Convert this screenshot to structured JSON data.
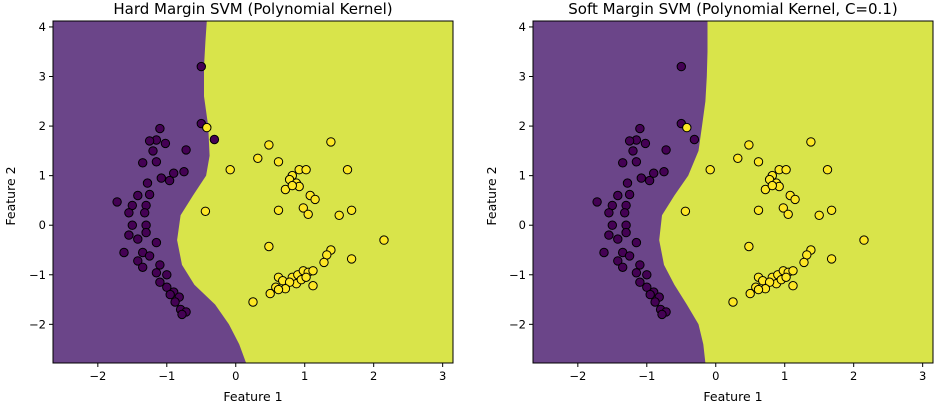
{
  "colors": {
    "class_0_region": "#6b4589",
    "class_1_region": "#d9e44a",
    "class_0_point": "#440154",
    "class_1_point": "#fde725",
    "point_edge": "#000000"
  },
  "chart_data": [
    {
      "type": "scatter",
      "title": "Hard Margin SVM (Polynomial Kernel)",
      "xlabel": "Feature 1",
      "ylabel": "Feature 2",
      "xlim": [
        -2.65,
        3.15
      ],
      "ylim": [
        -2.78,
        4.12
      ],
      "xticks": [
        "−2",
        "−1",
        "0",
        "1",
        "2",
        "3"
      ],
      "xtick_values": [
        -2,
        -1,
        0,
        1,
        2,
        3
      ],
      "yticks": [
        "−2",
        "−1",
        "0",
        "1",
        "2",
        "3",
        "4"
      ],
      "ytick_values": [
        -2,
        -1,
        0,
        1,
        2,
        3,
        4
      ],
      "grid": false,
      "decision_boundary": [
        [
          0.15,
          -2.78
        ],
        [
          0.05,
          -2.4
        ],
        [
          -0.1,
          -2.0
        ],
        [
          -0.3,
          -1.6
        ],
        [
          -0.6,
          -1.2
        ],
        [
          -0.78,
          -0.8
        ],
        [
          -0.85,
          -0.3
        ],
        [
          -0.8,
          0.2
        ],
        [
          -0.62,
          0.6
        ],
        [
          -0.43,
          1.0
        ],
        [
          -0.38,
          1.4
        ],
        [
          -0.4,
          2.0
        ],
        [
          -0.46,
          2.6
        ],
        [
          -0.46,
          3.2
        ],
        [
          -0.44,
          3.7
        ],
        [
          -0.42,
          4.12
        ]
      ],
      "points_class_0": [
        [
          -0.5,
          3.2
        ],
        [
          -0.5,
          2.05
        ],
        [
          -0.31,
          1.73
        ],
        [
          -1.1,
          1.95
        ],
        [
          -1.15,
          1.72
        ],
        [
          -1.25,
          1.7
        ],
        [
          -1.02,
          1.65
        ],
        [
          -1.2,
          1.5
        ],
        [
          -1.35,
          1.26
        ],
        [
          -1.15,
          1.28
        ],
        [
          -0.72,
          1.52
        ],
        [
          -0.75,
          1.08
        ],
        [
          -0.9,
          1.05
        ],
        [
          -1.08,
          0.95
        ],
        [
          -0.96,
          0.9
        ],
        [
          -1.28,
          0.85
        ],
        [
          -1.25,
          0.62
        ],
        [
          -1.42,
          0.6
        ],
        [
          -1.72,
          0.47
        ],
        [
          -1.5,
          0.4
        ],
        [
          -1.3,
          0.4
        ],
        [
          -1.55,
          0.25
        ],
        [
          -1.32,
          0.25
        ],
        [
          -1.5,
          0.0
        ],
        [
          -1.3,
          0.0
        ],
        [
          -1.55,
          -0.2
        ],
        [
          -1.3,
          -0.15
        ],
        [
          -1.42,
          -0.28
        ],
        [
          -1.15,
          -0.35
        ],
        [
          -1.62,
          -0.55
        ],
        [
          -1.35,
          -0.55
        ],
        [
          -1.25,
          -0.62
        ],
        [
          -1.42,
          -0.72
        ],
        [
          -1.1,
          -0.8
        ],
        [
          -1.35,
          -0.85
        ],
        [
          -1.15,
          -0.96
        ],
        [
          -1.0,
          -1.0
        ],
        [
          -1.1,
          -1.15
        ],
        [
          -1.0,
          -1.25
        ],
        [
          -0.9,
          -1.35
        ],
        [
          -0.95,
          -1.4
        ],
        [
          -0.82,
          -1.45
        ],
        [
          -0.88,
          -1.55
        ],
        [
          -0.8,
          -1.7
        ],
        [
          -0.72,
          -1.75
        ],
        [
          -0.78,
          -1.8
        ]
      ],
      "points_class_1": [
        [
          -0.42,
          1.97
        ],
        [
          -0.08,
          1.12
        ],
        [
          -0.44,
          0.28
        ],
        [
          0.48,
          1.62
        ],
        [
          0.32,
          1.35
        ],
        [
          0.62,
          1.28
        ],
        [
          0.82,
          1.0
        ],
        [
          0.92,
          1.12
        ],
        [
          1.02,
          1.12
        ],
        [
          0.78,
          0.92
        ],
        [
          0.88,
          0.85
        ],
        [
          0.72,
          0.72
        ],
        [
          0.92,
          0.78
        ],
        [
          0.82,
          0.8
        ],
        [
          1.08,
          0.6
        ],
        [
          1.15,
          0.52
        ],
        [
          0.62,
          0.3
        ],
        [
          0.98,
          0.35
        ],
        [
          1.05,
          0.22
        ],
        [
          1.38,
          1.68
        ],
        [
          1.62,
          1.12
        ],
        [
          1.5,
          0.2
        ],
        [
          1.68,
          0.3
        ],
        [
          2.15,
          -0.3
        ],
        [
          1.38,
          -0.5
        ],
        [
          1.32,
          -0.6
        ],
        [
          1.28,
          -0.75
        ],
        [
          1.68,
          -0.68
        ],
        [
          0.48,
          -0.43
        ],
        [
          0.62,
          -1.05
        ],
        [
          0.68,
          -1.12
        ],
        [
          0.82,
          -1.05
        ],
        [
          0.9,
          -1.0
        ],
        [
          0.98,
          -0.92
        ],
        [
          1.05,
          -0.95
        ],
        [
          1.12,
          -0.92
        ],
        [
          0.88,
          -1.18
        ],
        [
          0.95,
          -1.1
        ],
        [
          1.02,
          -1.05
        ],
        [
          1.12,
          -1.22
        ],
        [
          0.78,
          -1.15
        ],
        [
          0.72,
          -1.28
        ],
        [
          0.58,
          -1.25
        ],
        [
          0.62,
          -1.3
        ],
        [
          0.5,
          -1.38
        ],
        [
          0.25,
          -1.55
        ]
      ]
    },
    {
      "type": "scatter",
      "title": "Soft Margin SVM (Polynomial Kernel, C=0.1)",
      "xlabel": "Feature 1",
      "ylabel": "Feature 2",
      "xlim": [
        -2.65,
        3.15
      ],
      "ylim": [
        -2.78,
        4.12
      ],
      "xticks": [
        "−2",
        "−1",
        "0",
        "1",
        "2",
        "3"
      ],
      "xtick_values": [
        -2,
        -1,
        0,
        1,
        2,
        3
      ],
      "yticks": [
        "−2",
        "−1",
        "0",
        "1",
        "2",
        "3",
        "4"
      ],
      "ytick_values": [
        -2,
        -1,
        0,
        1,
        2,
        3,
        4
      ],
      "grid": false,
      "decision_boundary": [
        [
          -0.15,
          -2.78
        ],
        [
          -0.18,
          -2.4
        ],
        [
          -0.25,
          -2.0
        ],
        [
          -0.42,
          -1.6
        ],
        [
          -0.6,
          -1.2
        ],
        [
          -0.75,
          -0.8
        ],
        [
          -0.82,
          -0.3
        ],
        [
          -0.78,
          0.2
        ],
        [
          -0.6,
          0.6
        ],
        [
          -0.4,
          1.0
        ],
        [
          -0.25,
          1.5
        ],
        [
          -0.2,
          2.0
        ],
        [
          -0.15,
          2.5
        ],
        [
          -0.13,
          3.0
        ],
        [
          -0.12,
          3.5
        ],
        [
          -0.12,
          4.12
        ]
      ],
      "points_class_0": [
        [
          -0.5,
          3.2
        ],
        [
          -0.5,
          2.05
        ],
        [
          -0.31,
          1.73
        ],
        [
          -1.1,
          1.95
        ],
        [
          -1.15,
          1.72
        ],
        [
          -1.25,
          1.7
        ],
        [
          -1.02,
          1.65
        ],
        [
          -1.2,
          1.5
        ],
        [
          -1.35,
          1.26
        ],
        [
          -1.15,
          1.28
        ],
        [
          -0.72,
          1.52
        ],
        [
          -0.75,
          1.08
        ],
        [
          -0.9,
          1.05
        ],
        [
          -1.08,
          0.95
        ],
        [
          -0.96,
          0.9
        ],
        [
          -1.28,
          0.85
        ],
        [
          -1.25,
          0.62
        ],
        [
          -1.42,
          0.6
        ],
        [
          -1.72,
          0.47
        ],
        [
          -1.5,
          0.4
        ],
        [
          -1.3,
          0.4
        ],
        [
          -1.55,
          0.25
        ],
        [
          -1.32,
          0.25
        ],
        [
          -1.5,
          0.0
        ],
        [
          -1.3,
          0.0
        ],
        [
          -1.55,
          -0.2
        ],
        [
          -1.3,
          -0.15
        ],
        [
          -1.42,
          -0.28
        ],
        [
          -1.15,
          -0.35
        ],
        [
          -1.62,
          -0.55
        ],
        [
          -1.35,
          -0.55
        ],
        [
          -1.25,
          -0.62
        ],
        [
          -1.42,
          -0.72
        ],
        [
          -1.1,
          -0.8
        ],
        [
          -1.35,
          -0.85
        ],
        [
          -1.15,
          -0.96
        ],
        [
          -1.0,
          -1.0
        ],
        [
          -1.1,
          -1.15
        ],
        [
          -1.0,
          -1.25
        ],
        [
          -0.9,
          -1.35
        ],
        [
          -0.95,
          -1.4
        ],
        [
          -0.82,
          -1.45
        ],
        [
          -0.88,
          -1.55
        ],
        [
          -0.8,
          -1.7
        ],
        [
          -0.72,
          -1.75
        ],
        [
          -0.78,
          -1.8
        ]
      ],
      "points_class_1": [
        [
          -0.42,
          1.97
        ],
        [
          -0.08,
          1.12
        ],
        [
          -0.44,
          0.28
        ],
        [
          0.48,
          1.62
        ],
        [
          0.32,
          1.35
        ],
        [
          0.62,
          1.28
        ],
        [
          0.82,
          1.0
        ],
        [
          0.92,
          1.12
        ],
        [
          1.02,
          1.12
        ],
        [
          0.78,
          0.92
        ],
        [
          0.88,
          0.85
        ],
        [
          0.72,
          0.72
        ],
        [
          0.92,
          0.78
        ],
        [
          0.82,
          0.8
        ],
        [
          1.08,
          0.6
        ],
        [
          1.15,
          0.52
        ],
        [
          0.62,
          0.3
        ],
        [
          0.98,
          0.35
        ],
        [
          1.05,
          0.22
        ],
        [
          1.38,
          1.68
        ],
        [
          1.62,
          1.12
        ],
        [
          1.5,
          0.2
        ],
        [
          1.68,
          0.3
        ],
        [
          2.15,
          -0.3
        ],
        [
          1.38,
          -0.5
        ],
        [
          1.32,
          -0.6
        ],
        [
          1.28,
          -0.75
        ],
        [
          1.68,
          -0.68
        ],
        [
          0.48,
          -0.43
        ],
        [
          0.62,
          -1.05
        ],
        [
          0.68,
          -1.12
        ],
        [
          0.82,
          -1.05
        ],
        [
          0.9,
          -1.0
        ],
        [
          0.98,
          -0.92
        ],
        [
          1.05,
          -0.95
        ],
        [
          1.12,
          -0.92
        ],
        [
          0.88,
          -1.18
        ],
        [
          0.95,
          -1.1
        ],
        [
          1.02,
          -1.05
        ],
        [
          1.12,
          -1.22
        ],
        [
          0.78,
          -1.15
        ],
        [
          0.72,
          -1.28
        ],
        [
          0.58,
          -1.25
        ],
        [
          0.62,
          -1.3
        ],
        [
          0.5,
          -1.38
        ],
        [
          0.25,
          -1.55
        ]
      ]
    }
  ]
}
